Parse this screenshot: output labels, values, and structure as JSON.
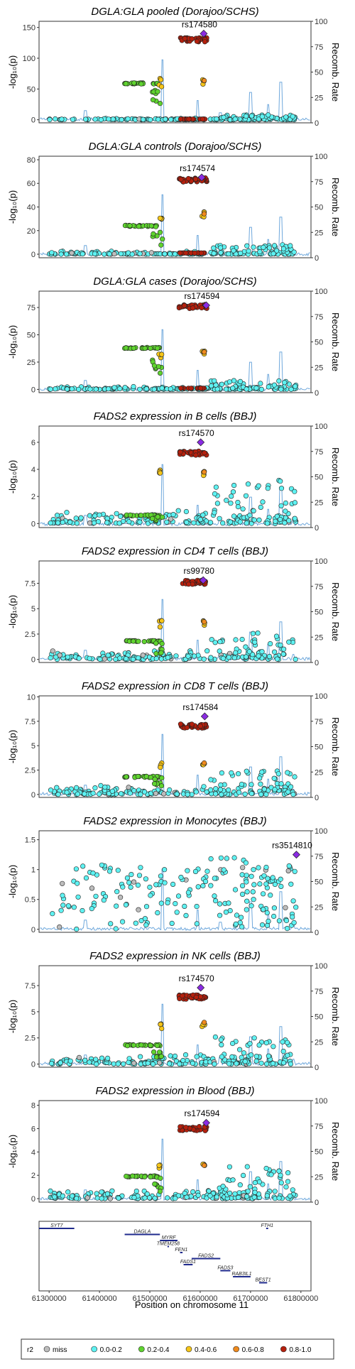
{
  "chart_data": {
    "type": "scatter",
    "x_label": "Position on chromosome 11",
    "x_ticks": [
      "61300000",
      "61400000",
      "61500000",
      "61600000",
      "61700000",
      "61800000"
    ],
    "x_range": [
      61280000,
      61820000
    ],
    "y_label": "-log₁₀(p)",
    "y2_label": "Recomb. Rate",
    "y2_ticks": [
      "0",
      "25",
      "50",
      "75",
      "100"
    ],
    "y2_range": [
      0,
      100
    ],
    "legend": {
      "title": "r2",
      "items": [
        {
          "label": "miss",
          "color": "#bdbdbd"
        },
        {
          "label": "0.0-0.2",
          "color": "#5ef2f2"
        },
        {
          "label": "0.2-0.4",
          "color": "#5fd42f"
        },
        {
          "label": "0.4-0.6",
          "color": "#f5c518"
        },
        {
          "label": "0.6-0.8",
          "color": "#ef8a1e"
        },
        {
          "label": "0.8-1.0",
          "color": "#b5200d"
        }
      ],
      "lead_color": "#8a2be2",
      "recomb_color": "#6fa8dc"
    },
    "panels": [
      {
        "title": "DGLA:GLA pooled (Dorajoo/SCHS)",
        "lead_snp": "rs174580",
        "lead_x": 61607000,
        "lead_y": 140,
        "ylim": [
          -5,
          160
        ],
        "yticks": [
          0,
          50,
          100,
          150
        ],
        "groups": {
          "green": 59,
          "orange": 67,
          "red": 130,
          "redLow": 1,
          "cyanTop": 8
        }
      },
      {
        "title": "DGLA:GLA controls (Dorajoo/SCHS)",
        "lead_snp": "rs174574",
        "lead_x": 61603000,
        "lead_y": 65,
        "ylim": [
          -3,
          83
        ],
        "yticks": [
          0,
          20,
          40,
          60,
          80
        ],
        "groups": {
          "green": 24,
          "orange": 36,
          "red": 63,
          "redLow": 1,
          "cyanTop": 8
        }
      },
      {
        "title": "DGLA:GLA cases (Dorajoo/SCHS)",
        "lead_snp": "rs174594",
        "lead_x": 61612000,
        "lead_y": 77,
        "ylim": [
          -3,
          90
        ],
        "yticks": [
          0,
          25,
          50,
          75
        ],
        "groups": {
          "green": 38,
          "orange": 36,
          "red": 76,
          "redLow": 1,
          "cyanTop": 8
        }
      },
      {
        "title": "FADS2 expression in B cells (BBJ)",
        "lead_snp": "rs174570",
        "lead_x": 61601000,
        "lead_y": 6.0,
        "ylim": [
          -0.3,
          7.2
        ],
        "yticks": [
          0,
          2,
          4,
          6
        ],
        "groups": {
          "green": 0.6,
          "orange": 4.0,
          "red": 5.2,
          "redLow": null,
          "cyanTop": 3.2
        }
      },
      {
        "title": "FADS2 expression in CD4 T cells (BBJ)",
        "lead_snp": "rs99780",
        "lead_x": 61606000,
        "lead_y": 7.8,
        "ylim": [
          -0.3,
          9.7
        ],
        "yticks": [
          0,
          2.5,
          5.0,
          7.5
        ],
        "groups": {
          "green": 1.8,
          "orange": 3.9,
          "red": 7.6,
          "redLow": null,
          "cyanTop": 2.8
        }
      },
      {
        "title": "FADS2 expression in CD8 T cells (BBJ)",
        "lead_snp": "rs174584",
        "lead_x": 61609000,
        "lead_y": 8.0,
        "ylim": [
          -0.3,
          10.1
        ],
        "yticks": [
          0,
          2.5,
          5.0,
          7.5,
          10.0
        ],
        "groups": {
          "green": 1.8,
          "orange": 3.4,
          "red": 7.0,
          "redLow": null,
          "cyanTop": 2.6
        }
      },
      {
        "title": "FADS2 expression in Monocytes (BBJ)",
        "lead_snp": "rs3514810",
        "lead_x": 61791000,
        "lead_y": 1.25,
        "ylim": [
          -0.05,
          1.65
        ],
        "yticks": [
          0,
          0.5,
          1.0,
          1.5
        ],
        "groups": {
          "green": null,
          "orange": null,
          "red": null,
          "redLow": null,
          "cyanTop": 1.2
        }
      },
      {
        "title": "FADS2 expression in NK cells (BBJ)",
        "lead_snp": "rs174570",
        "lead_x": 61601000,
        "lead_y": 7.3,
        "ylim": [
          -0.3,
          9.4
        ],
        "yticks": [
          0,
          2.5,
          5.0,
          7.5
        ],
        "groups": {
          "green": 1.8,
          "orange": 4.2,
          "red": 6.4,
          "redLow": null,
          "cyanTop": 2.6
        }
      },
      {
        "title": "FADS2 expression in Blood (BBJ)",
        "lead_snp": "rs174594",
        "lead_x": 61612000,
        "lead_y": 6.5,
        "ylim": [
          -0.3,
          8.4
        ],
        "yticks": [
          0,
          2,
          4,
          6,
          8
        ],
        "groups": {
          "green": 1.9,
          "orange": 3.0,
          "red": 6.0,
          "redLow": null,
          "cyanTop": 2.8
        }
      }
    ],
    "genes": [
      {
        "name": "SYT7",
        "start": 61280000,
        "end": 61350000,
        "row": 0
      },
      {
        "name": "DAGLA",
        "start": 61450000,
        "end": 61520000,
        "row": 1
      },
      {
        "name": "MYRF",
        "start": 61520000,
        "end": 61555000,
        "row": 2
      },
      {
        "name": "TMEM258",
        "start": 61535000,
        "end": 61538000,
        "row": 3
      },
      {
        "name": "FEN1",
        "start": 61560000,
        "end": 61565000,
        "row": 4
      },
      {
        "name": "FADS2",
        "start": 61583000,
        "end": 61640000,
        "row": 5
      },
      {
        "name": "FADS1",
        "start": 61567000,
        "end": 61585000,
        "row": 6
      },
      {
        "name": "FADS3",
        "start": 61640000,
        "end": 61660000,
        "row": 7
      },
      {
        "name": "RAB3IL1",
        "start": 61665000,
        "end": 61700000,
        "row": 8
      },
      {
        "name": "BEST1",
        "start": 61717000,
        "end": 61733000,
        "row": 9
      },
      {
        "name": "FTH1",
        "start": 61731000,
        "end": 61735000,
        "row": 0
      }
    ]
  }
}
